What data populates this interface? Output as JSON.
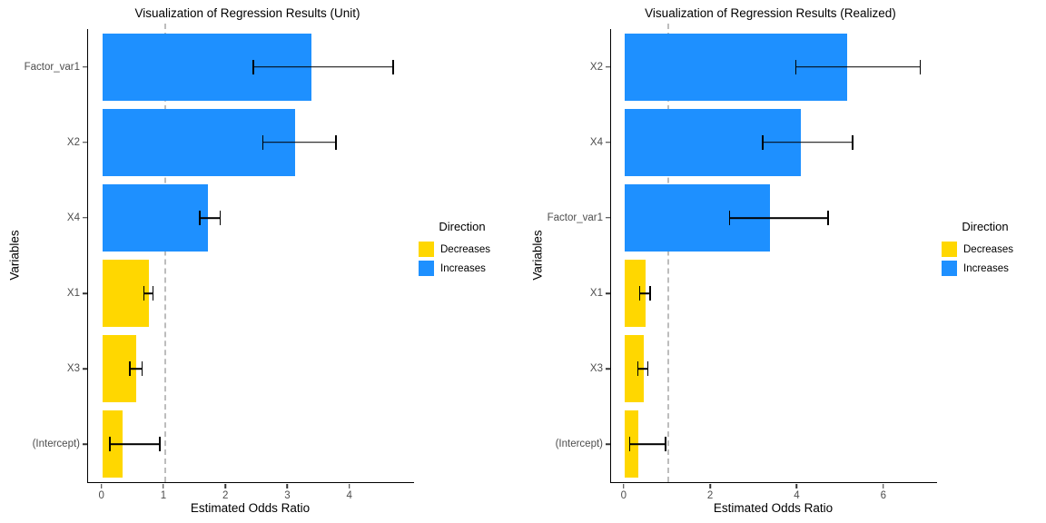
{
  "colors": {
    "increase": "#1E90FF",
    "decrease": "#FFD700",
    "error_bar": "#000000",
    "reference_line": "#BDBDBD",
    "axis_line": "#000000",
    "tick_text": "#4D4D4D"
  },
  "legend": {
    "title": "Direction",
    "items": [
      {
        "label": "Decreases",
        "color": "#FFD700"
      },
      {
        "label": "Increases",
        "color": "#1E90FF"
      }
    ]
  },
  "chart_data": [
    {
      "type": "bar",
      "orientation": "horizontal",
      "title": "Visualization of Regression Results (Unit)",
      "xlabel": "Estimated Odds Ratio",
      "ylabel": "Variables",
      "x_ticks": [
        0,
        1,
        2,
        3,
        4
      ],
      "xlim": [
        -0.23,
        5.03
      ],
      "reference_line_x": 1,
      "grid": false,
      "legend_position": "right",
      "categories": [
        "Factor_var1",
        "X2",
        "X4",
        "X1",
        "X3",
        "(Intercept)"
      ],
      "rows": [
        {
          "variable": "Factor_var1",
          "odds_ratio": 3.37,
          "ci_low": 2.44,
          "ci_high": 4.69,
          "direction": "Increases"
        },
        {
          "variable": "X2",
          "odds_ratio": 3.11,
          "ci_low": 2.59,
          "ci_high": 3.77,
          "direction": "Increases"
        },
        {
          "variable": "X4",
          "odds_ratio": 1.71,
          "ci_low": 1.57,
          "ci_high": 1.9,
          "direction": "Increases"
        },
        {
          "variable": "X1",
          "odds_ratio": 0.75,
          "ci_low": 0.67,
          "ci_high": 0.82,
          "direction": "Decreases"
        },
        {
          "variable": "X3",
          "odds_ratio": 0.54,
          "ci_low": 0.44,
          "ci_high": 0.64,
          "direction": "Decreases"
        },
        {
          "variable": "(Intercept)",
          "odds_ratio": 0.33,
          "ci_low": 0.12,
          "ci_high": 0.93,
          "direction": "Decreases"
        }
      ]
    },
    {
      "type": "bar",
      "orientation": "horizontal",
      "title": "Visualization of Regression Results (Realized)",
      "xlabel": "Estimated Odds Ratio",
      "ylabel": "Variables",
      "x_ticks": [
        0,
        2,
        4,
        6
      ],
      "xlim": [
        -0.31,
        7.22
      ],
      "reference_line_x": 1,
      "grid": false,
      "legend_position": "right",
      "categories": [
        "X2",
        "X4",
        "Factor_var1",
        "X1",
        "X3",
        "(Intercept)"
      ],
      "rows": [
        {
          "variable": "X2",
          "odds_ratio": 5.14,
          "ci_low": 3.96,
          "ci_high": 6.83,
          "direction": "Increases"
        },
        {
          "variable": "X4",
          "odds_ratio": 4.08,
          "ci_low": 3.19,
          "ci_high": 5.27,
          "direction": "Increases"
        },
        {
          "variable": "Factor_var1",
          "odds_ratio": 3.37,
          "ci_low": 2.43,
          "ci_high": 4.7,
          "direction": "Increases"
        },
        {
          "variable": "X1",
          "odds_ratio": 0.48,
          "ci_low": 0.35,
          "ci_high": 0.59,
          "direction": "Decreases"
        },
        {
          "variable": "X3",
          "odds_ratio": 0.45,
          "ci_low": 0.31,
          "ci_high": 0.54,
          "direction": "Decreases"
        },
        {
          "variable": "(Intercept)",
          "odds_ratio": 0.33,
          "ci_low": 0.12,
          "ci_high": 0.95,
          "direction": "Decreases"
        }
      ]
    }
  ]
}
